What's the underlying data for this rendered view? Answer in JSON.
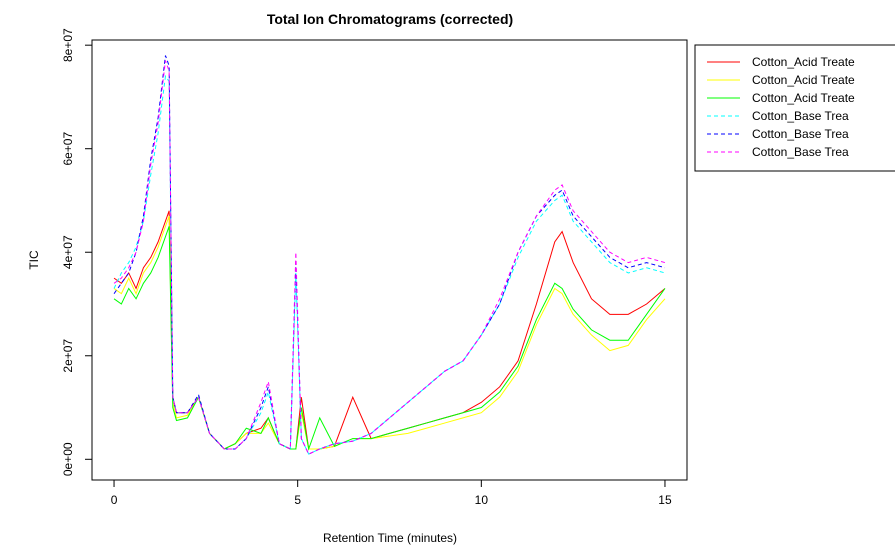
{
  "chart_data": {
    "type": "line",
    "title": "Total Ion Chromatograms (corrected)",
    "xlabel": "Retention Time (minutes)",
    "ylabel": "TIC",
    "xlim": [
      -0.6,
      15.6
    ],
    "ylim": [
      -4000000,
      81000000
    ],
    "xticks": [
      0,
      5,
      10,
      15
    ],
    "yticks": [
      {
        "value": 0,
        "label": "0e+00"
      },
      {
        "value": 20000000,
        "label": "2e+07"
      },
      {
        "value": 40000000,
        "label": "4e+07"
      },
      {
        "value": 60000000,
        "label": "6e+07"
      },
      {
        "value": 80000000,
        "label": "8e+07"
      }
    ],
    "legend": "outside-right",
    "x": [
      0,
      0.2,
      0.4,
      0.6,
      0.8,
      1.0,
      1.2,
      1.4,
      1.5,
      1.6,
      1.7,
      2.0,
      2.3,
      2.6,
      3.0,
      3.3,
      3.6,
      4.0,
      4.2,
      4.5,
      4.8,
      4.95,
      5.1,
      5.3,
      5.6,
      6.0,
      6.5,
      7.0,
      7.5,
      8.0,
      8.5,
      9.0,
      9.5,
      10.0,
      10.5,
      11.0,
      11.5,
      12.0,
      12.2,
      12.5,
      13.0,
      13.5,
      14.0,
      14.5,
      15.0
    ],
    "series": [
      {
        "name": "Cotton_Acid Treate",
        "color": "#ff0000",
        "dash": "solid",
        "values": [
          35000000,
          34000000,
          36000000,
          33000000,
          37000000,
          39000000,
          42000000,
          46000000,
          48000000,
          12000000,
          9000000,
          9000000,
          12000000,
          5000000,
          2000000,
          3000000,
          5000000,
          6000000,
          8000000,
          3000000,
          2000000,
          2000000,
          12000000,
          2000000,
          2000000,
          2500000,
          12000000,
          4000000,
          5000000,
          6000000,
          7000000,
          8000000,
          9000000,
          11000000,
          14000000,
          19000000,
          30000000,
          42000000,
          44000000,
          38000000,
          31000000,
          28000000,
          28000000,
          30000000,
          33000000
        ]
      },
      {
        "name": "Cotton_Acid Treate",
        "color": "#ffff00",
        "dash": "solid",
        "values": [
          33000000,
          32000000,
          35000000,
          32000000,
          36000000,
          38000000,
          41000000,
          45000000,
          47000000,
          11000000,
          8000000,
          8500000,
          12000000,
          5000000,
          2000000,
          3000000,
          5000000,
          5000000,
          7000000,
          3000000,
          2000000,
          2000000,
          9000000,
          2000000,
          2000000,
          2500000,
          4000000,
          4000000,
          4500000,
          5000000,
          6000000,
          7000000,
          8000000,
          9000000,
          12000000,
          17000000,
          26000000,
          33000000,
          32000000,
          28000000,
          24000000,
          21000000,
          22000000,
          27000000,
          31000000
        ]
      },
      {
        "name": "Cotton_Acid Treate",
        "color": "#00ff00",
        "dash": "solid",
        "values": [
          31000000,
          30000000,
          33000000,
          31000000,
          34000000,
          36000000,
          39000000,
          43000000,
          45000000,
          10000000,
          7500000,
          8000000,
          12000000,
          5000000,
          2000000,
          3000000,
          6000000,
          5000000,
          8000000,
          3000000,
          2000000,
          2000000,
          10000000,
          2000000,
          8000000,
          2500000,
          4000000,
          4000000,
          5000000,
          6000000,
          7000000,
          8000000,
          9000000,
          10000000,
          13000000,
          18000000,
          27000000,
          34000000,
          33000000,
          29000000,
          25000000,
          23000000,
          23000000,
          28000000,
          33000000
        ]
      },
      {
        "name": "Cotton_Base Trea",
        "color": "#00ffff",
        "dash": "dashed",
        "values": [
          33000000,
          36000000,
          38000000,
          41000000,
          46000000,
          55000000,
          63000000,
          74000000,
          73000000,
          12000000,
          9000000,
          9000000,
          12000000,
          5000000,
          2000000,
          2000000,
          4000000,
          9000000,
          13000000,
          3000000,
          2000000,
          36000000,
          4000000,
          1000000,
          2000000,
          3000000,
          3500000,
          5000000,
          8000000,
          11000000,
          14000000,
          17000000,
          19000000,
          24000000,
          30000000,
          39000000,
          46000000,
          50000000,
          51000000,
          46000000,
          42000000,
          38000000,
          36000000,
          37000000,
          36000000
        ]
      },
      {
        "name": "Cotton_Base Trea",
        "color": "#0000ff",
        "dash": "dashed",
        "values": [
          32000000,
          34000000,
          36000000,
          40000000,
          47000000,
          58000000,
          66000000,
          78000000,
          76000000,
          12000000,
          9000000,
          9000000,
          12500000,
          5000000,
          2000000,
          2000000,
          4000000,
          10000000,
          14000000,
          3000000,
          2000000,
          38000000,
          4000000,
          1000000,
          2000000,
          3000000,
          3500000,
          5000000,
          8000000,
          11000000,
          14000000,
          17000000,
          19000000,
          24000000,
          30000000,
          40000000,
          47000000,
          51000000,
          52000000,
          47000000,
          43000000,
          39000000,
          37000000,
          38000000,
          37000000
        ]
      },
      {
        "name": "Cotton_Base Trea",
        "color": "#ff00ff",
        "dash": "dashed",
        "values": [
          34000000,
          35000000,
          37000000,
          40000000,
          46000000,
          57000000,
          65000000,
          77000000,
          75000000,
          12000000,
          9000000,
          9000000,
          12000000,
          5000000,
          2000000,
          2000000,
          4000000,
          11000000,
          15000000,
          3000000,
          2000000,
          40000000,
          4000000,
          1000000,
          2000000,
          3000000,
          3500000,
          5000000,
          8000000,
          11000000,
          14000000,
          17000000,
          19000000,
          24000000,
          31000000,
          40000000,
          47000000,
          52000000,
          53000000,
          48000000,
          44000000,
          40000000,
          38000000,
          39000000,
          38000000
        ]
      }
    ]
  }
}
